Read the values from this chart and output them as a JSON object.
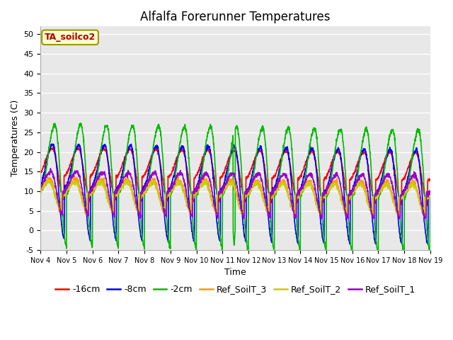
{
  "title": "Alfalfa Forerunner Temperatures",
  "xlabel": "Time",
  "ylabel": "Temperatures (C)",
  "annotation": "TA_soilco2",
  "ylim": [
    -5,
    52
  ],
  "yticks": [
    -5,
    0,
    5,
    10,
    15,
    20,
    25,
    30,
    35,
    40,
    45,
    50
  ],
  "xlim": [
    0,
    15
  ],
  "xtick_labels": [
    "Nov 4",
    "Nov 5",
    "Nov 6",
    "Nov 7",
    "Nov 8",
    "Nov 9",
    "Nov 10",
    "Nov 11",
    "Nov 12",
    "Nov 13",
    "Nov 14",
    "Nov 15",
    "Nov 16",
    "Nov 17",
    "Nov 18",
    "Nov 19"
  ],
  "series_colors": [
    "#ff0000",
    "#0000ff",
    "#00bb00",
    "#ff9900",
    "#cccc00",
    "#9900cc"
  ],
  "series_labels": [
    "-16cm",
    "-8cm",
    "-2cm",
    "Ref_SoilT_3",
    "Ref_SoilT_2",
    "Ref_SoilT_1"
  ],
  "background_color": "#e8e8e8",
  "title_fontsize": 12,
  "axis_fontsize": 9,
  "legend_fontsize": 9
}
